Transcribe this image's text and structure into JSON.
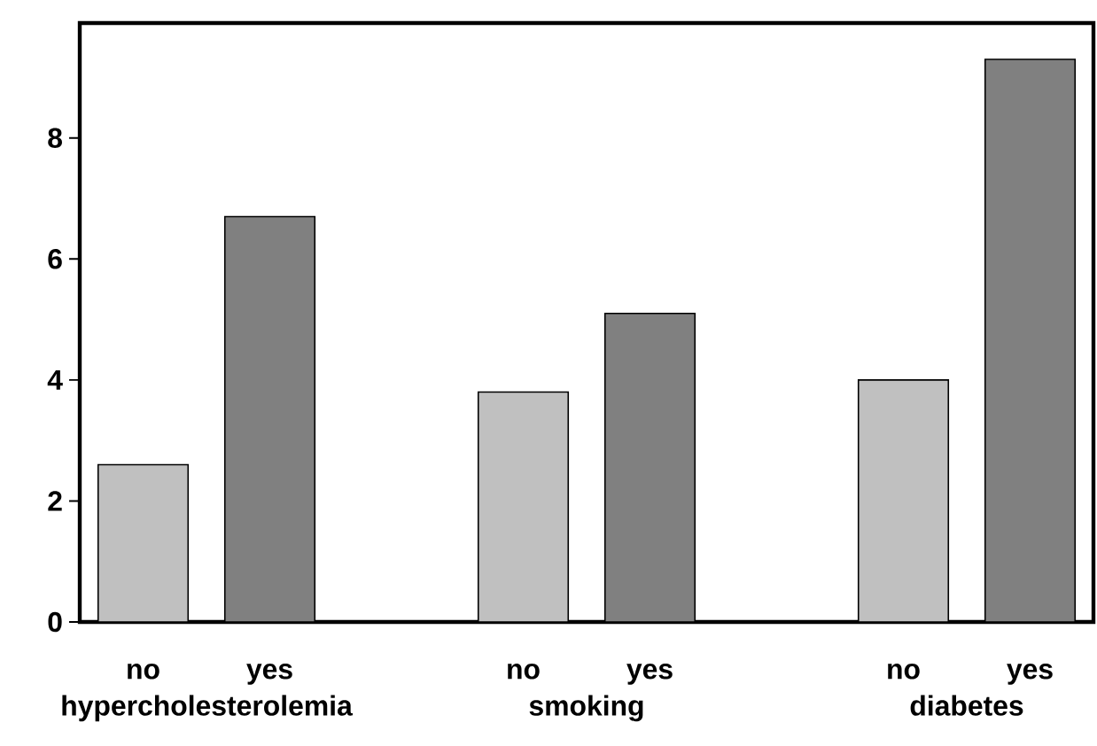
{
  "chart_data": {
    "type": "bar",
    "categories": [
      "no",
      "yes",
      null,
      "no",
      "yes",
      null,
      "no",
      "yes"
    ],
    "values": [
      2.6,
      6.7,
      null,
      3.8,
      5.1,
      null,
      4.0,
      9.3
    ],
    "colors": [
      "#c0c0c0",
      "#808080",
      null,
      "#c0c0c0",
      "#808080",
      null,
      "#c0c0c0",
      "#808080"
    ],
    "ylim": [
      0,
      9.9
    ],
    "yticks": [
      0,
      2,
      4,
      6,
      8
    ],
    "annotations": [
      "hypercholesterolemia",
      "smoking",
      "diabetes"
    ]
  }
}
